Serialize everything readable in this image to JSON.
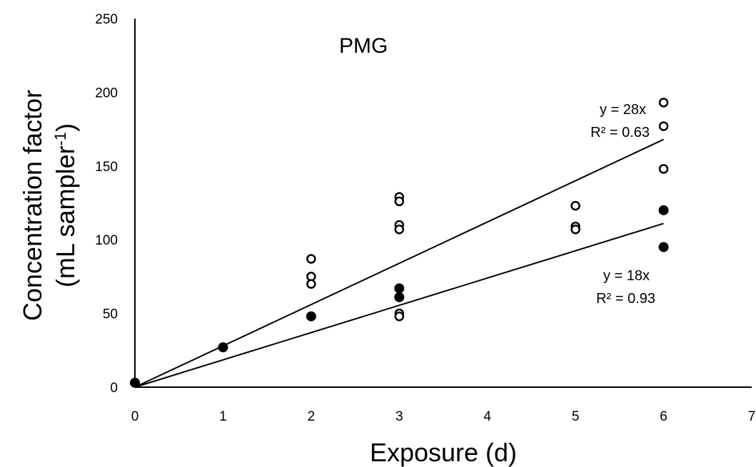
{
  "chart_data": {
    "type": "scatter",
    "title": "PMG",
    "xlabel": "Exposure (d)",
    "ylabel_line1": "Concentration factor",
    "ylabel_line2_main": "(mL sampler",
    "ylabel_line2_sup": "-1",
    "ylabel_line2_end": ")",
    "xlim": [
      0,
      7
    ],
    "ylim": [
      0,
      250
    ],
    "x_ticks": [
      0,
      1,
      2,
      3,
      4,
      5,
      6,
      7
    ],
    "y_ticks": [
      0,
      50,
      100,
      150,
      200,
      250
    ],
    "grid": false,
    "series": [
      {
        "marker": "open-circle",
        "points": [
          [
            0,
            3
          ],
          [
            2,
            87
          ],
          [
            2,
            75
          ],
          [
            2,
            70
          ],
          [
            3,
            129
          ],
          [
            3,
            126
          ],
          [
            3,
            110
          ],
          [
            3,
            107
          ],
          [
            3,
            50
          ],
          [
            3,
            48
          ],
          [
            5,
            123
          ],
          [
            5,
            109
          ],
          [
            5,
            107
          ],
          [
            6,
            193
          ],
          [
            6,
            177
          ],
          [
            6,
            148
          ]
        ],
        "trendline": {
          "slope": 28,
          "x_range": [
            0,
            6
          ],
          "equation": "y = 28x",
          "r2_label": "R² = 0.63"
        }
      },
      {
        "marker": "filled-circle",
        "points": [
          [
            0,
            3
          ],
          [
            1,
            27
          ],
          [
            2,
            48
          ],
          [
            3,
            67
          ],
          [
            3,
            61
          ],
          [
            6,
            120
          ],
          [
            6,
            95
          ]
        ],
        "trendline": {
          "slope": 18.5,
          "x_range": [
            0,
            6
          ],
          "equation": "y = 18x",
          "r2_label": "R² = 0.93"
        }
      }
    ]
  }
}
